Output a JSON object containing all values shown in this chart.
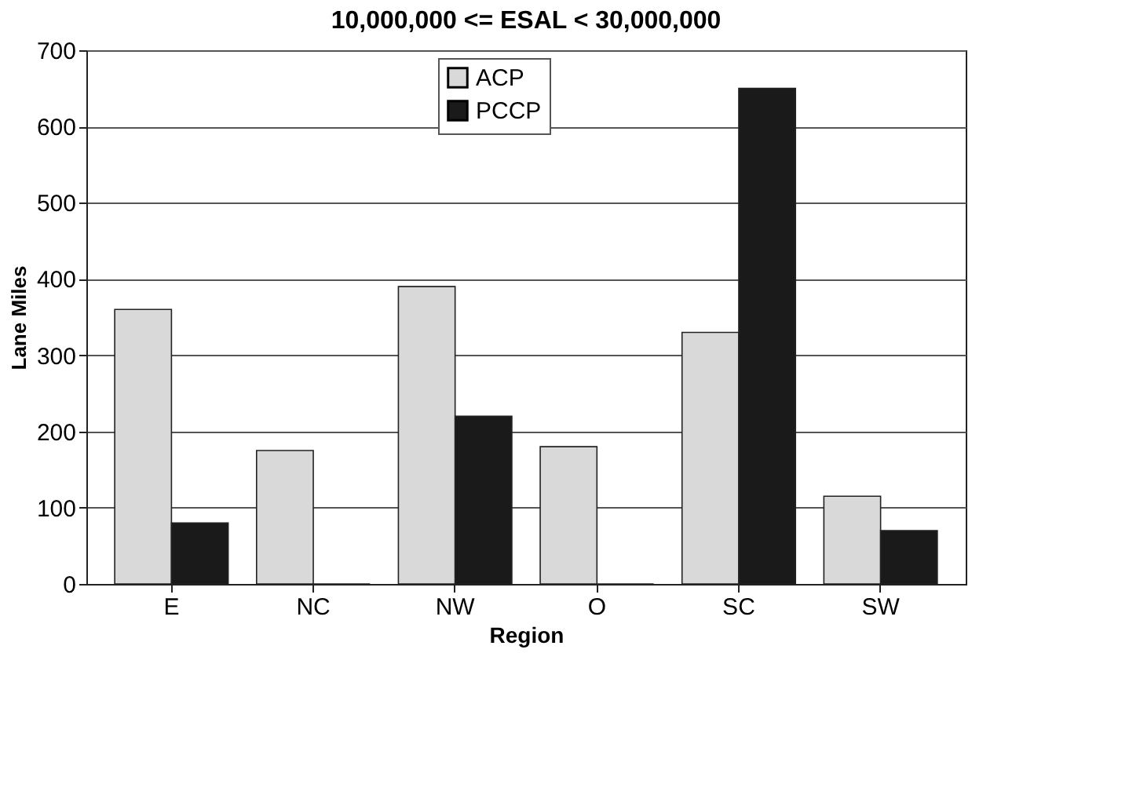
{
  "chart_data": {
    "type": "bar",
    "title": "10,000,000 <= ESAL < 30,000,000",
    "xlabel": "Region",
    "ylabel": "Lane Miles",
    "categories": [
      "E",
      "NC",
      "NW",
      "O",
      "SC",
      "SW"
    ],
    "series": [
      {
        "name": "ACP",
        "color": "#d9d9d9",
        "values": [
          360,
          175,
          390,
          180,
          330,
          115
        ]
      },
      {
        "name": "PCCP",
        "color": "#1a1a1a",
        "values": [
          80,
          0,
          220,
          0,
          650,
          70
        ]
      }
    ],
    "ylim": [
      0,
      700
    ],
    "yticks": [
      0,
      100,
      200,
      300,
      400,
      500,
      600,
      700
    ],
    "grid": "y",
    "legend": "top"
  }
}
